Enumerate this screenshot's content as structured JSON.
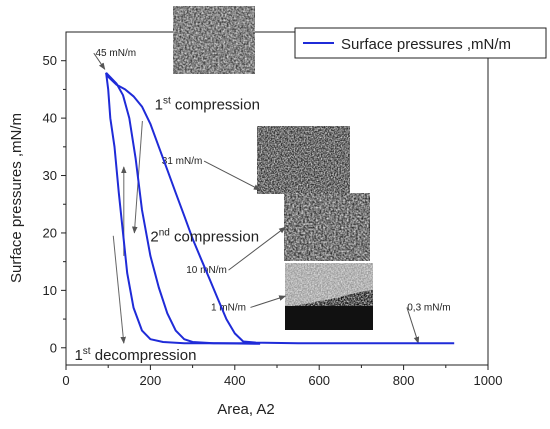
{
  "chart_data": {
    "type": "line",
    "xlabel": "Area, A2",
    "ylabel": "Surface pressures ,mN/m",
    "xlim": [
      0,
      1000
    ],
    "ylim": [
      -3,
      55
    ],
    "xticks": [
      0,
      200,
      400,
      600,
      800,
      1000
    ],
    "yticks": [
      0,
      10,
      20,
      30,
      40,
      50
    ],
    "grid": false,
    "legend_position": "top-right",
    "series": [
      {
        "name": "Surface pressures ,mN/m",
        "color": "#1f2bd8",
        "segments": [
          {
            "label": "1st compression",
            "points": [
              [
                920,
                0.8
              ],
              [
                850,
                0.8
              ],
              [
                750,
                0.8
              ],
              [
                650,
                0.8
              ],
              [
                550,
                0.8
              ],
              [
                450,
                0.9
              ],
              [
                420,
                1.1
              ],
              [
                400,
                2.5
              ],
              [
                380,
                5
              ],
              [
                360,
                8.5
              ],
              [
                340,
                12
              ],
              [
                320,
                15.5
              ],
              [
                300,
                19
              ],
              [
                280,
                23
              ],
              [
                260,
                27
              ],
              [
                240,
                31
              ],
              [
                220,
                35
              ],
              [
                200,
                39
              ],
              [
                180,
                42
              ],
              [
                160,
                43.8
              ],
              [
                140,
                45
              ],
              [
                120,
                45.8
              ],
              [
                100,
                47.2
              ],
              [
                95,
                47.9
              ]
            ]
          },
          {
            "label": "1st decompression",
            "points": [
              [
                95,
                47.9
              ],
              [
                100,
                45
              ],
              [
                105,
                40
              ],
              [
                115,
                35
              ],
              [
                125,
                27
              ],
              [
                135,
                20
              ],
              [
                145,
                13
              ],
              [
                160,
                7
              ],
              [
                180,
                3
              ],
              [
                200,
                1.5
              ],
              [
                230,
                1
              ],
              [
                280,
                0.8
              ],
              [
                360,
                0.8
              ],
              [
                460,
                0.7
              ]
            ]
          },
          {
            "label": "2nd compression",
            "points": [
              [
                460,
                0.8
              ],
              [
                350,
                0.8
              ],
              [
                300,
                1
              ],
              [
                280,
                1.5
              ],
              [
                260,
                3
              ],
              [
                240,
                6
              ],
              [
                220,
                10.5
              ],
              [
                200,
                16
              ],
              [
                180,
                24
              ],
              [
                165,
                33
              ],
              [
                150,
                40
              ],
              [
                135,
                44
              ],
              [
                120,
                46
              ],
              [
                95,
                47.9
              ]
            ]
          }
        ]
      }
    ],
    "annotations": [
      {
        "text": "45 mN/m",
        "x": 118,
        "y": 50.8,
        "arrow_to": [
          92,
          48.5
        ]
      },
      {
        "text": "31 mN/m",
        "x": 275,
        "y": 32,
        "arrow_to": [
          460,
          27.5
        ]
      },
      {
        "text": "10 mN/m",
        "x": 333,
        "y": 13,
        "arrow_to": [
          520,
          21
        ]
      },
      {
        "text": "1 mN/m",
        "x": 385,
        "y": 6.5,
        "arrow_to": [
          520,
          9
        ]
      },
      {
        "text": "0,3 mN/m",
        "x": 860,
        "y": 6.5,
        "arrow_to": [
          835,
          0.8
        ]
      }
    ],
    "curve_labels": [
      {
        "text": "compression",
        "sup": "st",
        "prefix": "1",
        "x": 210,
        "y": 41.5
      },
      {
        "text": "compression",
        "sup": "nd",
        "prefix": "2",
        "x": 200,
        "y": 18.5
      },
      {
        "text": "decompression",
        "sup": "st",
        "prefix": "1",
        "x": 20,
        "y": -2.1
      }
    ],
    "inset_images": [
      {
        "name": "micrograph-45"
      },
      {
        "name": "micrograph-31"
      },
      {
        "name": "micrograph-10"
      },
      {
        "name": "micrograph-1"
      }
    ]
  }
}
